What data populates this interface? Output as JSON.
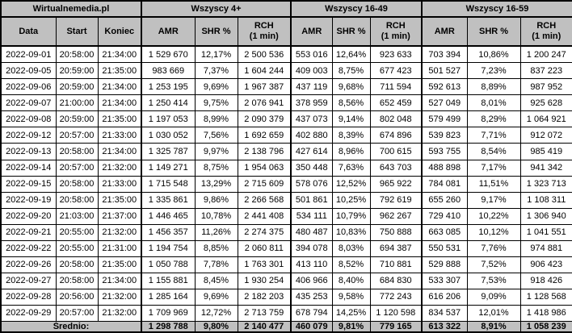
{
  "chart_data": {
    "type": "table",
    "title": "Wirtualnemedia.pl",
    "base_columns": [
      "Data",
      "Start",
      "Koniec"
    ],
    "groups": [
      "Wszyscy 4+",
      "Wszyscy 16-49",
      "Wszyscy 16-59"
    ],
    "sub_columns": [
      "AMR",
      "SHR %",
      "RCH\n(1 min)"
    ],
    "rows": [
      [
        "2022-09-01",
        "20:58:00",
        "21:34:00",
        "1 529 670",
        "12,17%",
        "2 500 536",
        "553 016",
        "12,64%",
        "923 633",
        "703 394",
        "10,86%",
        "1 200 247"
      ],
      [
        "2022-09-05",
        "20:59:00",
        "21:35:00",
        "983 669",
        "7,37%",
        "1 604 244",
        "409 003",
        "8,75%",
        "677 423",
        "501 527",
        "7,23%",
        "837 223"
      ],
      [
        "2022-09-06",
        "20:59:00",
        "21:34:00",
        "1 253 195",
        "9,69%",
        "1 967 387",
        "437 119",
        "9,68%",
        "711 594",
        "592 613",
        "8,89%",
        "987 952"
      ],
      [
        "2022-09-07",
        "21:00:00",
        "21:34:00",
        "1 250 414",
        "9,75%",
        "2 076 941",
        "378 959",
        "8,56%",
        "652 459",
        "527 049",
        "8,01%",
        "925 628"
      ],
      [
        "2022-09-08",
        "20:59:00",
        "21:35:00",
        "1 197 053",
        "8,99%",
        "2 090 379",
        "437 073",
        "9,14%",
        "802 048",
        "579 499",
        "8,29%",
        "1 064 921"
      ],
      [
        "2022-09-12",
        "20:57:00",
        "21:33:00",
        "1 030 052",
        "7,56%",
        "1 692 659",
        "402 880",
        "8,39%",
        "674 896",
        "539 823",
        "7,71%",
        "912 072"
      ],
      [
        "2022-09-13",
        "20:58:00",
        "21:34:00",
        "1 325 787",
        "9,97%",
        "2 138 796",
        "427 614",
        "8,96%",
        "700 615",
        "593 755",
        "8,54%",
        "985 419"
      ],
      [
        "2022-09-14",
        "20:57:00",
        "21:32:00",
        "1 149 271",
        "8,75%",
        "1 954 063",
        "350 448",
        "7,63%",
        "643 703",
        "488 898",
        "7,17%",
        "941 342"
      ],
      [
        "2022-09-15",
        "20:58:00",
        "21:33:00",
        "1 715 548",
        "13,29%",
        "2 715 609",
        "578 076",
        "12,52%",
        "965 922",
        "784 081",
        "11,51%",
        "1 323 713"
      ],
      [
        "2022-09-19",
        "20:58:00",
        "21:35:00",
        "1 335 861",
        "9,86%",
        "2 266 568",
        "501 861",
        "10,25%",
        "792 619",
        "655 260",
        "9,17%",
        "1 108 311"
      ],
      [
        "2022-09-20",
        "21:03:00",
        "21:37:00",
        "1 446 465",
        "10,78%",
        "2 441 408",
        "534 111",
        "10,79%",
        "962 267",
        "729 410",
        "10,22%",
        "1 306 940"
      ],
      [
        "2022-09-21",
        "20:55:00",
        "21:32:00",
        "1 456 357",
        "11,26%",
        "2 274 375",
        "480 487",
        "10,83%",
        "750 888",
        "663 085",
        "10,12%",
        "1 041 551"
      ],
      [
        "2022-09-22",
        "20:55:00",
        "21:31:00",
        "1 194 754",
        "8,85%",
        "2 060 811",
        "394 078",
        "8,03%",
        "694 387",
        "550 531",
        "7,76%",
        "974 881"
      ],
      [
        "2022-09-26",
        "20:58:00",
        "21:35:00",
        "1 050 788",
        "7,78%",
        "1 763 301",
        "413 110",
        "8,52%",
        "710 881",
        "529 888",
        "7,52%",
        "906 423"
      ],
      [
        "2022-09-27",
        "20:58:00",
        "21:34:00",
        "1 155 881",
        "8,45%",
        "1 930 254",
        "406 966",
        "8,40%",
        "684 830",
        "533 307",
        "7,53%",
        "918 426"
      ],
      [
        "2022-09-28",
        "20:56:00",
        "21:32:00",
        "1 285 164",
        "9,69%",
        "2 182 203",
        "435 253",
        "9,58%",
        "772 243",
        "616 206",
        "9,09%",
        "1 128 568"
      ],
      [
        "2022-09-29",
        "20:57:00",
        "21:32:00",
        "1 709 969",
        "12,72%",
        "2 713 759",
        "678 794",
        "14,25%",
        "1 120 598",
        "834 537",
        "12,01%",
        "1 418 986"
      ]
    ],
    "average_label": "Średnio:",
    "average": [
      "1 298 788",
      "9,80%",
      "2 140 477",
      "460 079",
      "9,81%",
      "779 165",
      "613 322",
      "8,91%",
      "1 058 239"
    ],
    "colors": {
      "header_bg": "#c0c0c0",
      "row_bg": "#ffffff",
      "border": "#000000"
    }
  }
}
